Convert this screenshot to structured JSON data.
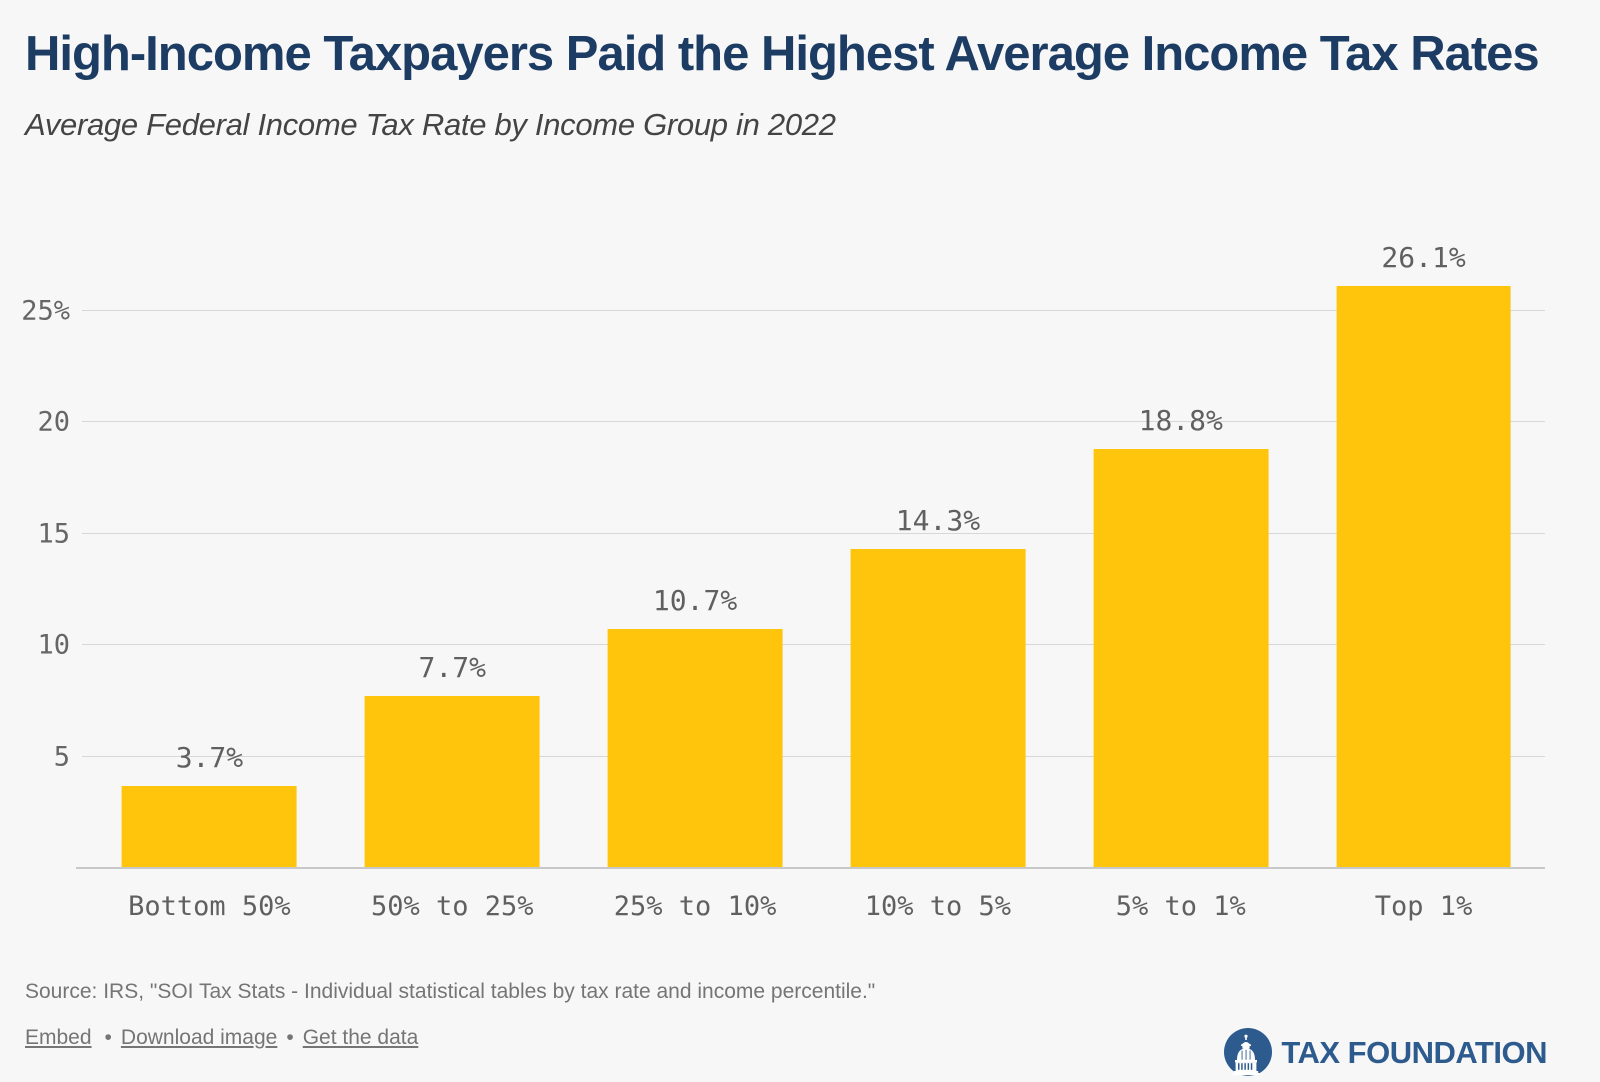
{
  "header": {
    "title": "High-Income Taxpayers Paid the Highest Average Income Tax Rates",
    "subtitle": "Average Federal Income Tax Rate by Income Group in 2022"
  },
  "chart_data": {
    "type": "bar",
    "title": "High-Income Taxpayers Paid the Highest Average Income Tax Rates",
    "subtitle": "Average Federal Income Tax Rate by Income Group in 2022",
    "categories": [
      "Bottom 50%",
      "50% to 25%",
      "25% to 10%",
      "10% to 5%",
      "5% to 1%",
      "Top 1%"
    ],
    "values": [
      3.7,
      7.7,
      10.7,
      14.3,
      18.8,
      26.1
    ],
    "value_labels": [
      "3.7%",
      "7.7%",
      "10.7%",
      "14.3%",
      "18.8%",
      "26.1%"
    ],
    "xlabel": "",
    "ylabel": "",
    "y_ticks": [
      5,
      10,
      15,
      20,
      25
    ],
    "y_tick_labels": [
      "5",
      "10",
      "15",
      "20",
      "25%"
    ],
    "ylim": [
      0,
      28.7
    ],
    "grid": true,
    "legend": false
  },
  "footer": {
    "source": "Source: IRS, \"SOI Tax Stats - Individual statistical tables by tax rate and income percentile.\"",
    "separator": "•",
    "links": [
      {
        "label": "Embed"
      },
      {
        "label": "Download image"
      },
      {
        "label": "Get the data"
      }
    ],
    "logo_text": "TAX FOUNDATION"
  },
  "colors": {
    "background": "#f7f7f8",
    "title_navy": "#1d3c64",
    "bar_yellow": "#ffc40c",
    "logo_navy": "#2d5b8e",
    "chart_text_gray": "#606060",
    "footer_gray": "#757575",
    "grid_gray": "#d7d7d8"
  }
}
